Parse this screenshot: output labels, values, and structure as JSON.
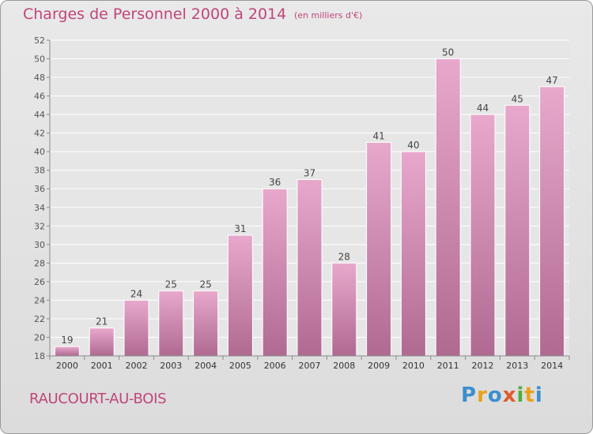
{
  "header": {
    "title": "Charges de Personnel 2000 à 2014",
    "subtitle": "(en milliers d'€)"
  },
  "footer": {
    "commune": "RAUCOURT-AU-BOIS",
    "logo_letters": [
      {
        "char": "P",
        "color": "#3a8fd0"
      },
      {
        "char": "r",
        "color": "#e8a21a"
      },
      {
        "char": "o",
        "color": "#3a8fd0"
      },
      {
        "char": "x",
        "color": "#e05a2a"
      },
      {
        "char": "i",
        "color": "#4fae3b"
      },
      {
        "char": "t",
        "color": "#e8a21a"
      },
      {
        "char": "i",
        "color": "#3a8fd0"
      }
    ]
  },
  "colors": {
    "accent": "#c0457a",
    "bar_top": "#e8a8cc",
    "bar_bottom": "#b06a92"
  },
  "chart_data": {
    "type": "bar",
    "categories": [
      "2000",
      "2001",
      "2002",
      "2003",
      "2004",
      "2005",
      "2006",
      "2007",
      "2008",
      "2009",
      "2010",
      "2011",
      "2012",
      "2013",
      "2014"
    ],
    "values": [
      19,
      21,
      24,
      25,
      25,
      31,
      36,
      37,
      28,
      41,
      40,
      50,
      44,
      45,
      47
    ],
    "data_labels": [
      "19",
      "21",
      "24",
      "25",
      "25",
      "31",
      "36",
      "37",
      "28",
      "41",
      "40",
      "50",
      "44",
      "45",
      "47"
    ],
    "ylim": [
      18,
      52
    ],
    "yticks": [
      18,
      20,
      22,
      24,
      26,
      28,
      30,
      32,
      34,
      36,
      38,
      40,
      42,
      44,
      46,
      48,
      50,
      52
    ],
    "grid": true
  }
}
